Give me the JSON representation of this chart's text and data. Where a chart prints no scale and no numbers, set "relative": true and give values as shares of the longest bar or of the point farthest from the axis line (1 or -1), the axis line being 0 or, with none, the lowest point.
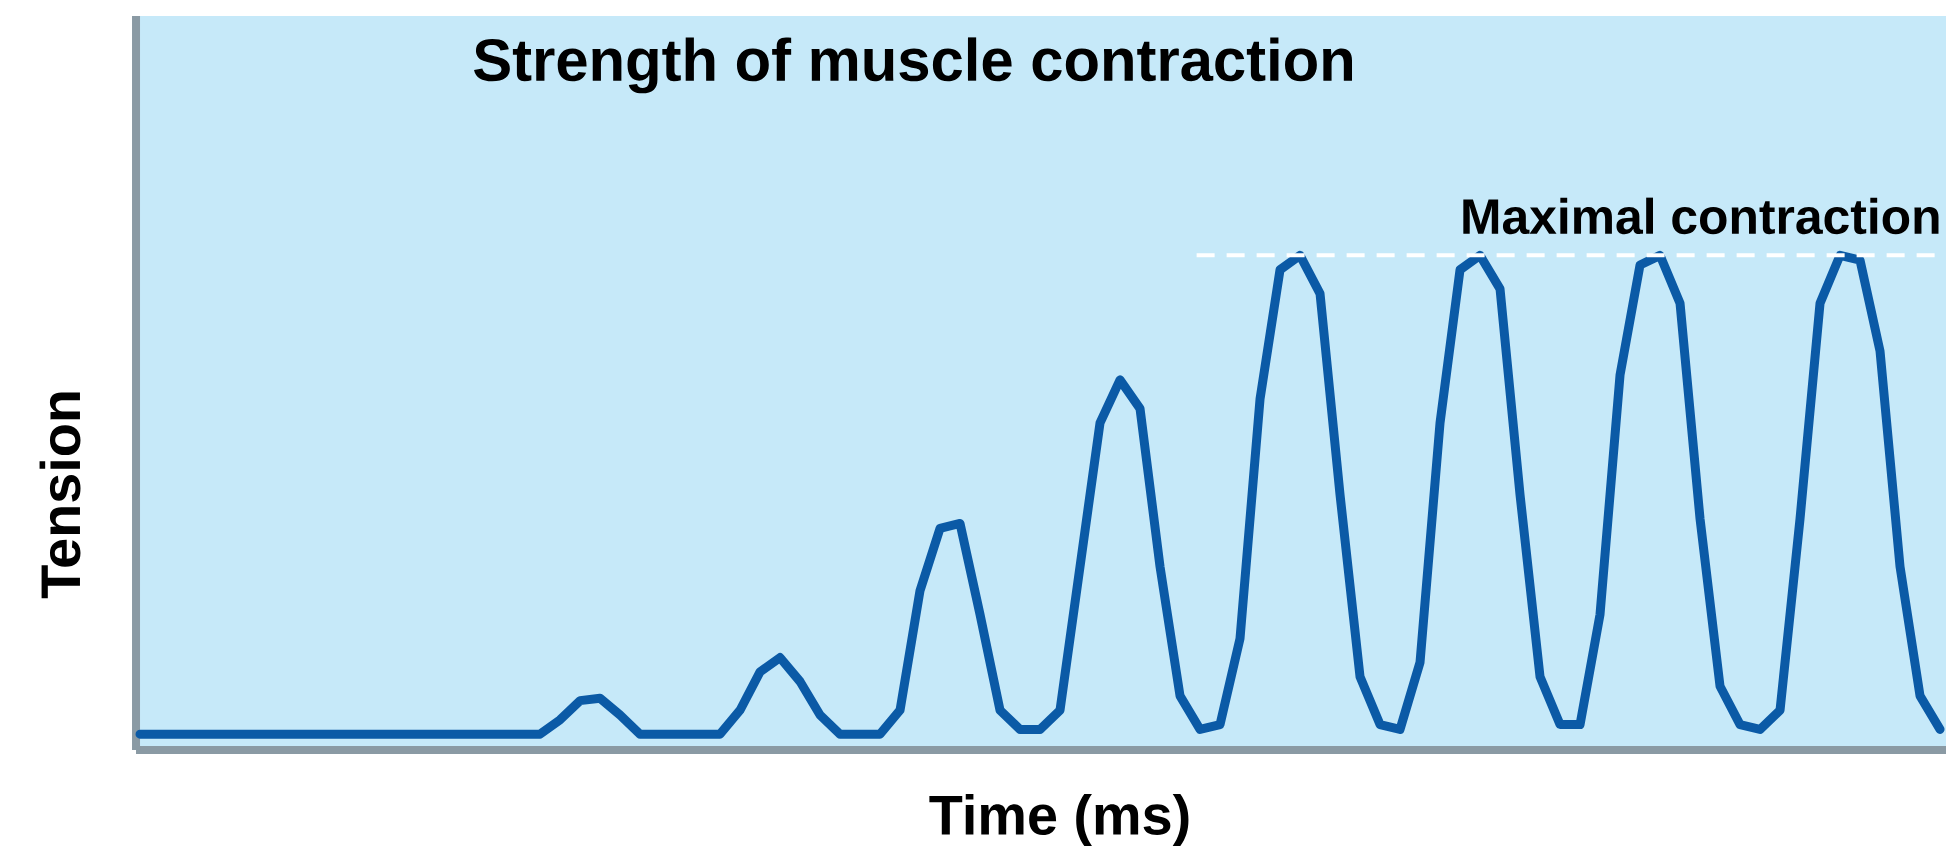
{
  "chart_data": {
    "type": "line",
    "title": "Strength of muscle contraction",
    "xlabel": "Time (ms)",
    "ylabel": "Tension",
    "relative": true,
    "categories": [
      null,
      null,
      null,
      null,
      null,
      null,
      null,
      null,
      null,
      null,
      null,
      null,
      null,
      null,
      null,
      null,
      null,
      null,
      null,
      null,
      null,
      null,
      null,
      null,
      null,
      null,
      null,
      null,
      null,
      null,
      null,
      null,
      null,
      null,
      null,
      null,
      null,
      null,
      null,
      null,
      null,
      null,
      null,
      null,
      null,
      null,
      null,
      null,
      null,
      null,
      null,
      null,
      null,
      null,
      null,
      null,
      null,
      null,
      null,
      null,
      null,
      null,
      null,
      null,
      null,
      null,
      null,
      null,
      null,
      null,
      null,
      null,
      null,
      null,
      null,
      null,
      null,
      null,
      null,
      null,
      null,
      null,
      null,
      null,
      null,
      null,
      null,
      null,
      null,
      null,
      null
    ],
    "series": [
      {
        "color": "#0b5aa6",
        "values": [
          0,
          0,
          0,
          0,
          0,
          0,
          0,
          0,
          0,
          0,
          0,
          0,
          0,
          0,
          0,
          0,
          0,
          0,
          0,
          0,
          0,
          0.03,
          0.07,
          0.075,
          0.04,
          0,
          0,
          0,
          0,
          0,
          0.05,
          0.13,
          0.16,
          0.11,
          0.04,
          0,
          0,
          0,
          0.05,
          0.3,
          0.43,
          0.44,
          0.25,
          0.05,
          0.01,
          0.01,
          0.05,
          0.35,
          0.65,
          0.74,
          0.68,
          0.35,
          0.08,
          0.01,
          0.02,
          0.2,
          0.7,
          0.97,
          1,
          0.92,
          0.5,
          0.12,
          0.02,
          0.01,
          0.15,
          0.65,
          0.97,
          1,
          0.93,
          0.5,
          0.12,
          0.02,
          0.02,
          0.25,
          0.75,
          0.98,
          1,
          0.9,
          0.45,
          0.1,
          0.02,
          0.01,
          0.05,
          0.45,
          0.9,
          1,
          0.99,
          0.8,
          0.35,
          0.08,
          0.01
        ]
      }
    ],
    "ref_lines": [
      {
        "axis": "y",
        "value": 1,
        "label": "Maximal contraction",
        "color": "#ffffff",
        "line_style": "dashed"
      }
    ]
  }
}
